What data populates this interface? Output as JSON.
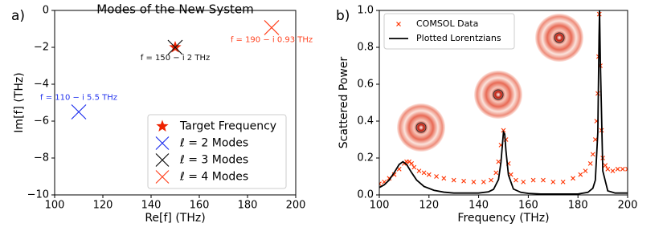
{
  "chart_data": [
    {
      "type": "scatter",
      "panel_label": "a)",
      "title": "Modes of the New System",
      "x_label": "Re[f] (THz)",
      "y_label": "Im[f] (THz)",
      "xlim": [
        100,
        200
      ],
      "ylim": [
        -10,
        0
      ],
      "xticks": [
        100,
        120,
        140,
        160,
        180,
        200
      ],
      "yticks": [
        0,
        {
          "value": -2,
          "label": "−2"
        },
        {
          "value": -4,
          "label": "−4"
        },
        {
          "value": -6,
          "label": "−6"
        },
        {
          "value": -8,
          "label": "−8"
        },
        {
          "value": -10,
          "label": "−10"
        }
      ],
      "grid": false,
      "legend": "lower right",
      "series": [
        {
          "name": "Target Frequency",
          "color": "#ee2200",
          "marker": "star",
          "x": [
            150
          ],
          "values": [
            -2
          ]
        },
        {
          "name": "ℓ = 2 Modes",
          "color": "#2233ee",
          "marker": "x",
          "x": [
            110
          ],
          "values": [
            -5.5
          ],
          "annotation": "f = 110 − i 5.5 THz"
        },
        {
          "name": "ℓ = 3 Modes",
          "color": "#111111",
          "marker": "x",
          "x": [
            150
          ],
          "values": [
            -2
          ],
          "annotation": "f = 150 − i 2 THz"
        },
        {
          "name": "ℓ = 4 Modes",
          "color": "#ff4422",
          "marker": "x",
          "x": [
            190
          ],
          "values": [
            -0.93
          ],
          "annotation": "f = 190 − i 0.93 THz"
        }
      ]
    },
    {
      "type": "line",
      "panel_label": "b)",
      "x_label": "Frequency (THz)",
      "y_label": "Scattered Power",
      "xlim": [
        100,
        200
      ],
      "ylim": [
        0,
        1
      ],
      "xticks": [
        100,
        120,
        140,
        160,
        180,
        200
      ],
      "yticks": [
        {
          "value": 0,
          "label": "0.0"
        },
        0.2,
        0.4,
        0.6,
        0.8,
        {
          "value": 1,
          "label": "1.0"
        }
      ],
      "grid": false,
      "legend": "upper left",
      "series": [
        {
          "name": "COMSOL Data",
          "color": "#ff3300",
          "marker": "x",
          "x": [
            100,
            102,
            104,
            106,
            108,
            110,
            111,
            112,
            113,
            114,
            116,
            118,
            120,
            123,
            126,
            130,
            134,
            138,
            142,
            145,
            147,
            148,
            149,
            150,
            151,
            152,
            153,
            155,
            158,
            162,
            166,
            170,
            174,
            178,
            181,
            183,
            185,
            186,
            187,
            187.5,
            188,
            188.3,
            188.6,
            189,
            189.5,
            190,
            191,
            192,
            194,
            196,
            198,
            200
          ],
          "values": [
            0.06,
            0.07,
            0.09,
            0.11,
            0.14,
            0.17,
            0.18,
            0.18,
            0.17,
            0.15,
            0.13,
            0.12,
            0.11,
            0.1,
            0.09,
            0.08,
            0.075,
            0.07,
            0.07,
            0.08,
            0.12,
            0.18,
            0.27,
            0.35,
            0.3,
            0.17,
            0.11,
            0.08,
            0.07,
            0.08,
            0.08,
            0.07,
            0.07,
            0.09,
            0.11,
            0.13,
            0.17,
            0.22,
            0.3,
            0.4,
            0.55,
            0.75,
            0.98,
            0.7,
            0.35,
            0.2,
            0.16,
            0.14,
            0.13,
            0.14,
            0.14,
            0.14
          ]
        },
        {
          "name": "Plotted Lorentzians",
          "color": "#000000",
          "x": [
            100,
            102,
            104,
            106,
            108,
            109.5,
            111,
            113,
            115,
            118,
            122,
            126,
            130,
            135,
            140,
            144,
            146,
            148,
            149,
            150,
            150.5,
            151,
            152,
            154,
            157,
            160,
            165,
            170,
            175,
            180,
            184,
            186,
            187,
            188,
            188.5,
            188.7,
            189,
            190,
            192,
            195,
            200
          ],
          "values": [
            0.04,
            0.055,
            0.081,
            0.121,
            0.165,
            0.18,
            0.165,
            0.121,
            0.081,
            0.046,
            0.025,
            0.015,
            0.01,
            0.01,
            0.01,
            0.017,
            0.03,
            0.083,
            0.178,
            0.34,
            0.33,
            0.24,
            0.108,
            0.032,
            0.014,
            0.008,
            0.005,
            0.005,
            0.005,
            0.005,
            0.014,
            0.036,
            0.08,
            0.34,
            0.86,
            1.0,
            0.74,
            0.13,
            0.022,
            0.01,
            0.01
          ]
        }
      ]
    }
  ]
}
